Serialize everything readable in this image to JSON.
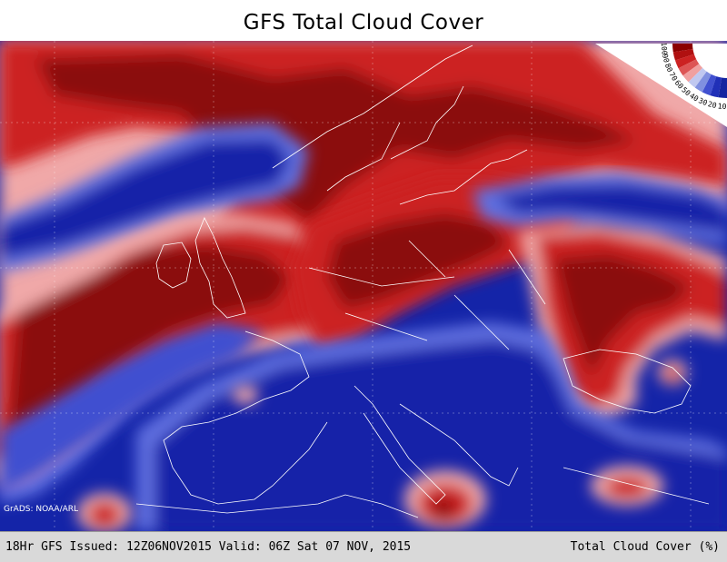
{
  "title": "GFS Total Cloud Cover",
  "credit": "GrADS: NOAA/ARL",
  "footer": {
    "issued_text": "18Hr GFS Issued: 12Z06NOV2015 Valid: 06Z Sat 07 NOV, 2015",
    "variable_text": "Total Cloud Cover (%)"
  },
  "legend": {
    "levels": [
      "100",
      "90",
      "80",
      "70",
      "60",
      "50",
      "40",
      "30",
      "20",
      "10"
    ],
    "colors": [
      "#8b0000",
      "#b01010",
      "#cc2222",
      "#dd5555",
      "#f0a0a0",
      "#c0c8f0",
      "#8090e0",
      "#4050d0",
      "#2030b8",
      "#1424a0"
    ]
  },
  "colors": {
    "clear": "#1424a8",
    "low": "#5060d8",
    "mid": "#f0a8a8",
    "high": "#cc2222",
    "overcast": "#8b0a0a",
    "coastline": "#ffffff"
  }
}
